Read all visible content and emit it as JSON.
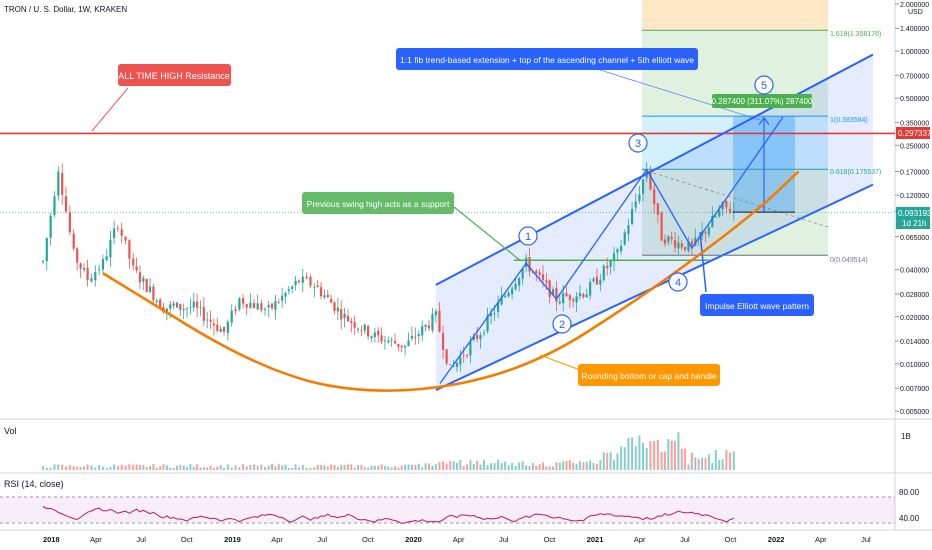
{
  "header": {
    "symbol_title": "TRON / U. S. Dollar, 1W, KRAKEN"
  },
  "price_axis": {
    "currency": "USD",
    "ticks": [
      "2.000000",
      "1.400000",
      "1.000000",
      "0.700000",
      "0.500000",
      "0.350000",
      "0.250000",
      "0.170000",
      "0.120000",
      "0.095000",
      "0.065000",
      "0.040000",
      "0.028000",
      "0.020000",
      "0.014000",
      "0.010000",
      "0.007000",
      "0.005000"
    ],
    "current_price_label": "0.093193",
    "current_time_label": "1d 21h",
    "resistance_label": "0.297337"
  },
  "time_axis": {
    "ticks": [
      "2018",
      "Apr",
      "Jul",
      "Oct",
      "2019",
      "Apr",
      "Jul",
      "Oct",
      "2020",
      "Apr",
      "Jul",
      "Oct",
      "2021",
      "Apr",
      "Jul",
      "Oct",
      "2022",
      "Apr",
      "Jul"
    ]
  },
  "volume_pane": {
    "title": "Vol",
    "scale_label": "1B"
  },
  "rsi_pane": {
    "title": "RSI (14, close)",
    "levels": [
      "80.00",
      "40.00"
    ]
  },
  "annotations": {
    "ath_resistance": "ALL TIME HIGH Resistance",
    "fib_extension_note": "1:1 fib trend-based extension + top of the ascending channel + 5th elliott wave",
    "swing_high_support": "Previous swing high acts as a support",
    "impulse_pattern": "Impulse Elliott wave pattern",
    "rounding_bottom": "Rounding bottom or cap and handle",
    "measure_label": "0.287400 (311.07%) 287400"
  },
  "fib_levels": [
    "1.618(1.358176)",
    "1(0.383584)",
    "0.618(0.175537)",
    "0(0.049514)"
  ],
  "wave_labels": [
    "1",
    "2",
    "3",
    "4",
    "5"
  ],
  "colors": {
    "candle_up": "#26a69a",
    "candle_down": "#ef5350",
    "resistance": "#e53935",
    "channel": "#2962ff",
    "rounding": "#f57c00",
    "support": "#4caf50",
    "fib_blue": "#2196f3",
    "rsi_line": "#c2185b",
    "callout_blue": "#2962ff",
    "callout_green": "#66bb6a",
    "callout_orange": "#ff9800",
    "callout_red": "#ef5350"
  },
  "chart_data": {
    "type": "candlestick",
    "title": "TRON / U. S. Dollar, 1W, KRAKEN",
    "y_scale": "log",
    "ylim": [
      0.0045,
      2.1
    ],
    "x_range": [
      "2017-11",
      "2022-09"
    ],
    "price_series": [
      {
        "date": "2017-12",
        "price": 0.045
      },
      {
        "date": "2018-01",
        "price": 0.18
      },
      {
        "date": "2018-02",
        "price": 0.05
      },
      {
        "date": "2018-03",
        "price": 0.035
      },
      {
        "date": "2018-04",
        "price": 0.044
      },
      {
        "date": "2018-05",
        "price": 0.08
      },
      {
        "date": "2018-06",
        "price": 0.04
      },
      {
        "date": "2018-08",
        "price": 0.023
      },
      {
        "date": "2018-10",
        "price": 0.023
      },
      {
        "date": "2018-12",
        "price": 0.016
      },
      {
        "date": "2019-01",
        "price": 0.026
      },
      {
        "date": "2019-03",
        "price": 0.022
      },
      {
        "date": "2019-05",
        "price": 0.034
      },
      {
        "date": "2019-06",
        "price": 0.032
      },
      {
        "date": "2019-08",
        "price": 0.02
      },
      {
        "date": "2019-10",
        "price": 0.015
      },
      {
        "date": "2019-12",
        "price": 0.013
      },
      {
        "date": "2020-02",
        "price": 0.02
      },
      {
        "date": "2020-03",
        "price": 0.009
      },
      {
        "date": "2020-05",
        "price": 0.016
      },
      {
        "date": "2020-08",
        "price": 0.044
      },
      {
        "date": "2020-10",
        "price": 0.026
      },
      {
        "date": "2020-12",
        "price": 0.029
      },
      {
        "date": "2021-02",
        "price": 0.05
      },
      {
        "date": "2021-04",
        "price": 0.175
      },
      {
        "date": "2021-05",
        "price": 0.065
      },
      {
        "date": "2021-07",
        "price": 0.055
      },
      {
        "date": "2021-09",
        "price": 0.1
      },
      {
        "date": "2021-10",
        "price": 0.093193
      }
    ],
    "all_time_high_resistance": 0.297337,
    "current_price": 0.093193,
    "fib_extension": [
      {
        "ratio": 1.618,
        "price": 1.358176
      },
      {
        "ratio": 1,
        "price": 0.383584
      },
      {
        "ratio": 0.618,
        "price": 0.175537
      },
      {
        "ratio": 0,
        "price": 0.049514
      }
    ],
    "measured_move": {
      "change": 0.2874,
      "percent": 311.07
    },
    "elliott_waves": [
      {
        "label": "1",
        "date": "2020-08",
        "price": 0.044
      },
      {
        "label": "2",
        "date": "2020-10",
        "price": 0.026
      },
      {
        "label": "3",
        "date": "2021-04",
        "price": 0.175
      },
      {
        "label": "4",
        "date": "2021-07",
        "price": 0.055
      },
      {
        "label": "5",
        "date": "2022-01",
        "price": 0.38
      }
    ],
    "ascending_channel": {
      "upper": [
        {
          "date": "2020-02",
          "price": 0.032
        },
        {
          "date": "2022-07",
          "price": 0.95
        }
      ],
      "lower": [
        {
          "date": "2020-02",
          "price": 0.0068
        },
        {
          "date": "2022-07",
          "price": 0.14
        }
      ]
    },
    "support_level": 0.046,
    "rounding_curve": [
      {
        "date": "2018-04",
        "price": 0.038
      },
      {
        "date": "2019-03",
        "price": 0.0085
      },
      {
        "date": "2019-11",
        "price": 0.0062
      },
      {
        "date": "2020-08",
        "price": 0.009
      },
      {
        "date": "2021-04",
        "price": 0.028
      },
      {
        "date": "2021-11",
        "price": 0.09
      },
      {
        "date": "2022-02",
        "price": 0.17
      }
    ],
    "rsi": {
      "levels": [
        80,
        40
      ],
      "period": 14
    }
  }
}
